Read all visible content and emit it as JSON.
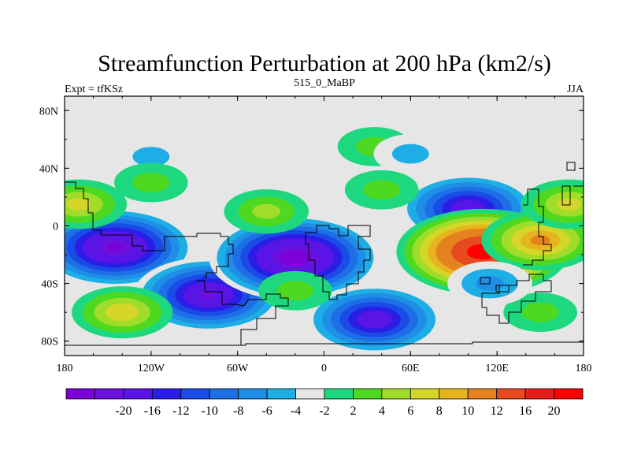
{
  "title": "Streamfunction Perturbation at 200 hPa (km2/s)",
  "left_label": "Expt = tfKSz",
  "center_label": "515_0_MaBP",
  "right_label": "JJA",
  "x_axis": {
    "range": [
      -180,
      180
    ],
    "ticks": [
      {
        "value": -180,
        "label": "180"
      },
      {
        "value": -120,
        "label": "120W"
      },
      {
        "value": -60,
        "label": "60W"
      },
      {
        "value": 0,
        "label": "0"
      },
      {
        "value": 60,
        "label": "60E"
      },
      {
        "value": 120,
        "label": "120E"
      },
      {
        "value": 180,
        "label": "180"
      }
    ]
  },
  "y_axis": {
    "range": [
      -90,
      90
    ],
    "ticks": [
      {
        "value": 80,
        "label": "80N"
      },
      {
        "value": 40,
        "label": "40N"
      },
      {
        "value": 0,
        "label": "0"
      },
      {
        "value": -40,
        "label": "40S"
      },
      {
        "value": -80,
        "label": "80S"
      }
    ]
  },
  "colorbar": {
    "colors": [
      "#7d00d8",
      "#6c10dc",
      "#5a14e6",
      "#2a1ee6",
      "#1a4be6",
      "#1e6ee6",
      "#1e8ee6",
      "#1eaee6",
      "#e6e6e6",
      "#1ed880",
      "#4ed820",
      "#a0dc2a",
      "#d6d62a",
      "#e6b41e",
      "#e6821e",
      "#e64a1e",
      "#e61e1e",
      "#ff0000"
    ],
    "labels": [
      "-20",
      "-16",
      "-12",
      "-10",
      "-8",
      "-6",
      "-4",
      "-2",
      "2",
      "4",
      "6",
      "8",
      "10",
      "12",
      "16",
      "20"
    ]
  },
  "chart_data": {
    "type": "heatmap",
    "variable": "Streamfunction Perturbation at 200 hPa",
    "units": "km2/s",
    "season": "JJA",
    "experiment": "tfKSz",
    "case": "515_0_MaBP",
    "anomalies": [
      {
        "lon": -145,
        "lat": -15,
        "value": -20
      },
      {
        "lon": -80,
        "lat": -48,
        "value": -18
      },
      {
        "lon": -20,
        "lat": -22,
        "value": -22
      },
      {
        "lon": 35,
        "lat": -65,
        "value": -16
      },
      {
        "lon": 100,
        "lat": 12,
        "value": -16
      },
      {
        "lon": 110,
        "lat": -18,
        "value": 22
      },
      {
        "lon": 150,
        "lat": -10,
        "value": 12
      },
      {
        "lon": -140,
        "lat": -60,
        "value": 9
      },
      {
        "lon": -170,
        "lat": 15,
        "value": 8
      },
      {
        "lon": 170,
        "lat": 15,
        "value": 8
      },
      {
        "lon": -40,
        "lat": 10,
        "value": 6
      },
      {
        "lon": 40,
        "lat": 25,
        "value": 4
      },
      {
        "lon": 35,
        "lat": 55,
        "value": 4
      },
      {
        "lon": -20,
        "lat": -45,
        "value": 4
      },
      {
        "lon": 150,
        "lat": -60,
        "value": 4
      },
      {
        "lon": -120,
        "lat": 48,
        "value": -4
      },
      {
        "lon": 60,
        "lat": 50,
        "value": -4
      },
      {
        "lon": 115,
        "lat": -40,
        "value": -6
      },
      {
        "lon": -120,
        "lat": 30,
        "value": 4
      }
    ]
  }
}
